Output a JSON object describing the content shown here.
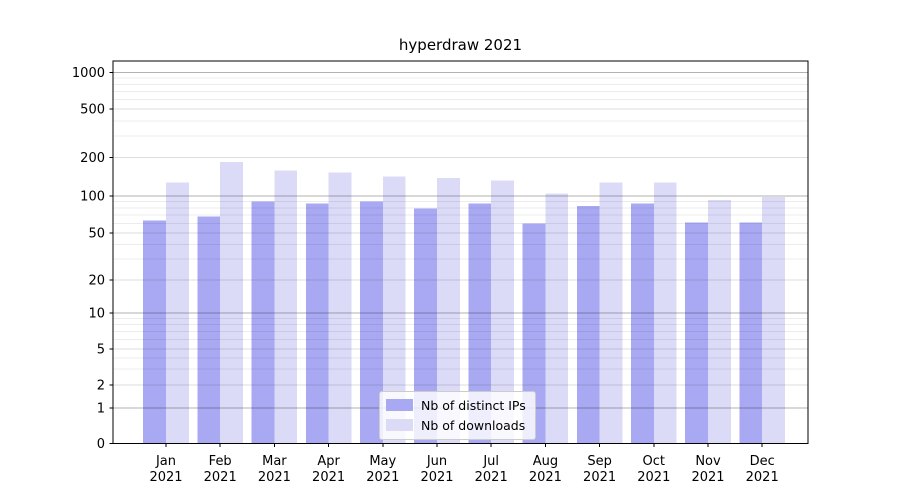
{
  "title": "hyperdraw 2021",
  "legend": {
    "items": [
      {
        "label": "Nb of distinct IPs",
        "color": "#a9a9f3"
      },
      {
        "label": "Nb of downloads",
        "color": "#dbdbf8"
      }
    ]
  },
  "axes": {
    "y_tick_labels": [
      "0",
      "1",
      "2",
      "5",
      "10",
      "20",
      "50",
      "100",
      "200",
      "500",
      "1000"
    ],
    "x_tick_labels": [
      "Jan 2021",
      "Feb 2021",
      "Mar 2021",
      "Apr 2021",
      "May 2021",
      "Jun 2021",
      "Jul 2021",
      "Aug 2021",
      "Sep 2021",
      "Oct 2021",
      "Nov 2021",
      "Dec 2021"
    ]
  },
  "chart_data": {
    "type": "bar",
    "title": "hyperdraw 2021",
    "categories": [
      "Jan 2021",
      "Feb 2021",
      "Mar 2021",
      "Apr 2021",
      "May 2021",
      "Jun 2021",
      "Jul 2021",
      "Aug 2021",
      "Sep 2021",
      "Oct 2021",
      "Nov 2021",
      "Dec 2021"
    ],
    "series": [
      {
        "name": "Nb of distinct IPs",
        "color": "#a9a9f3",
        "values": [
          63,
          68,
          90,
          87,
          90,
          79,
          87,
          60,
          83,
          87,
          61,
          61
        ]
      },
      {
        "name": "Nb of downloads",
        "color": "#dbdbf8",
        "values": [
          127,
          185,
          158,
          152,
          142,
          138,
          132,
          105,
          128,
          128,
          93,
          98
        ]
      }
    ],
    "xlabel": "",
    "ylabel": "",
    "yscale": "symlog",
    "yticks": [
      0,
      1,
      2,
      5,
      10,
      20,
      50,
      100,
      200,
      500,
      1000
    ],
    "ylim": [
      0,
      1250
    ],
    "grid": "horizontal major and minor gridlines",
    "legend_position": "lower center"
  }
}
